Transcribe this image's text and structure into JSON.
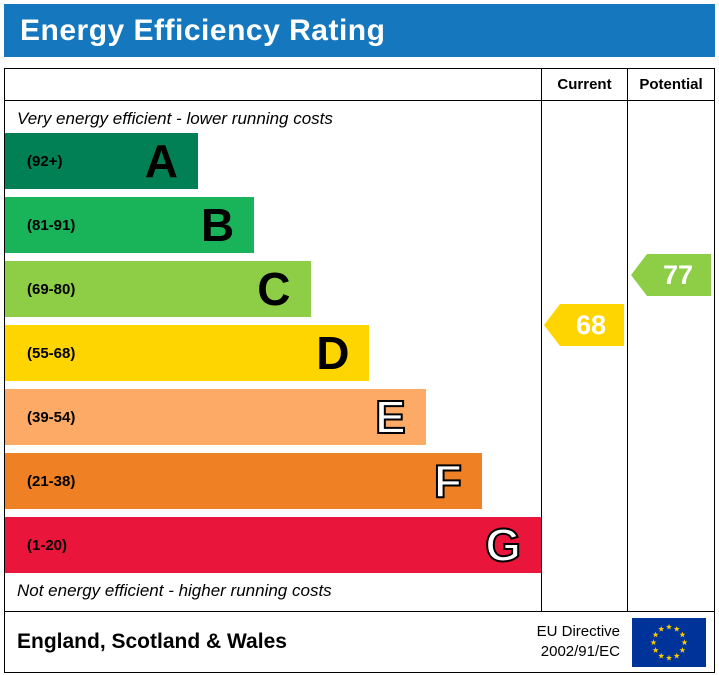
{
  "theme": {
    "banner_bg": "#1577bd",
    "banner_text": "#ffffff"
  },
  "title": "Energy Efficiency Rating",
  "table": {
    "current_label": "Current",
    "potential_label": "Potential"
  },
  "notes": {
    "top": "Very energy efficient - lower running costs",
    "bottom": "Not energy efficient - higher running costs"
  },
  "bands": [
    {
      "letter": "A",
      "range": "(92+)",
      "min": 92,
      "max": 100,
      "color": "#008054",
      "width_pct": 36,
      "letter_style": "solid"
    },
    {
      "letter": "B",
      "range": "(81-91)",
      "min": 81,
      "max": 91,
      "color": "#19b459",
      "width_pct": 46.5,
      "letter_style": "solid"
    },
    {
      "letter": "C",
      "range": "(69-80)",
      "min": 69,
      "max": 80,
      "color": "#8dce46",
      "width_pct": 57,
      "letter_style": "solid"
    },
    {
      "letter": "D",
      "range": "(55-68)",
      "min": 55,
      "max": 68,
      "color": "#ffd500",
      "width_pct": 68,
      "letter_style": "solid"
    },
    {
      "letter": "E",
      "range": "(39-54)",
      "min": 39,
      "max": 54,
      "color": "#fcaa65",
      "width_pct": 78.5,
      "letter_style": "outline"
    },
    {
      "letter": "F",
      "range": "(21-38)",
      "min": 21,
      "max": 38,
      "color": "#ef8023",
      "width_pct": 89,
      "letter_style": "outline"
    },
    {
      "letter": "G",
      "range": "(1-20)",
      "min": 1,
      "max": 20,
      "color": "#e9153b",
      "width_pct": 100,
      "letter_style": "outline"
    }
  ],
  "ratings": {
    "current": {
      "value": 68,
      "color": "#ffd500"
    },
    "potential": {
      "value": 77,
      "color": "#8dce46"
    }
  },
  "footer": {
    "region": "England, Scotland & Wales",
    "directive_line1": "EU Directive",
    "directive_line2": "2002/91/EC",
    "flag": {
      "background": "#003399",
      "stars": "#ffcc00"
    }
  },
  "chart_data": {
    "type": "bar",
    "title": "Energy Efficiency Rating",
    "orientation": "horizontal",
    "categories": [
      "A",
      "B",
      "C",
      "D",
      "E",
      "F",
      "G"
    ],
    "band_ranges": [
      "92+",
      "81-91",
      "69-80",
      "55-68",
      "39-54",
      "21-38",
      "1-20"
    ],
    "bar_length_pct": [
      36,
      46.5,
      57,
      68,
      78.5,
      89,
      100
    ],
    "band_colors": [
      "#008054",
      "#19b459",
      "#8dce46",
      "#ffd500",
      "#fcaa65",
      "#ef8023",
      "#e9153b"
    ],
    "columns": [
      "Current",
      "Potential"
    ],
    "markers": {
      "current": 68,
      "potential": 77
    },
    "marker_colors": {
      "current": "#ffd500",
      "potential": "#8dce46"
    },
    "annotations": [
      "Very energy efficient - lower running costs",
      "Not energy efficient - higher running costs"
    ],
    "footer_text": [
      "England, Scotland & Wales",
      "EU Directive",
      "2002/91/EC"
    ]
  }
}
